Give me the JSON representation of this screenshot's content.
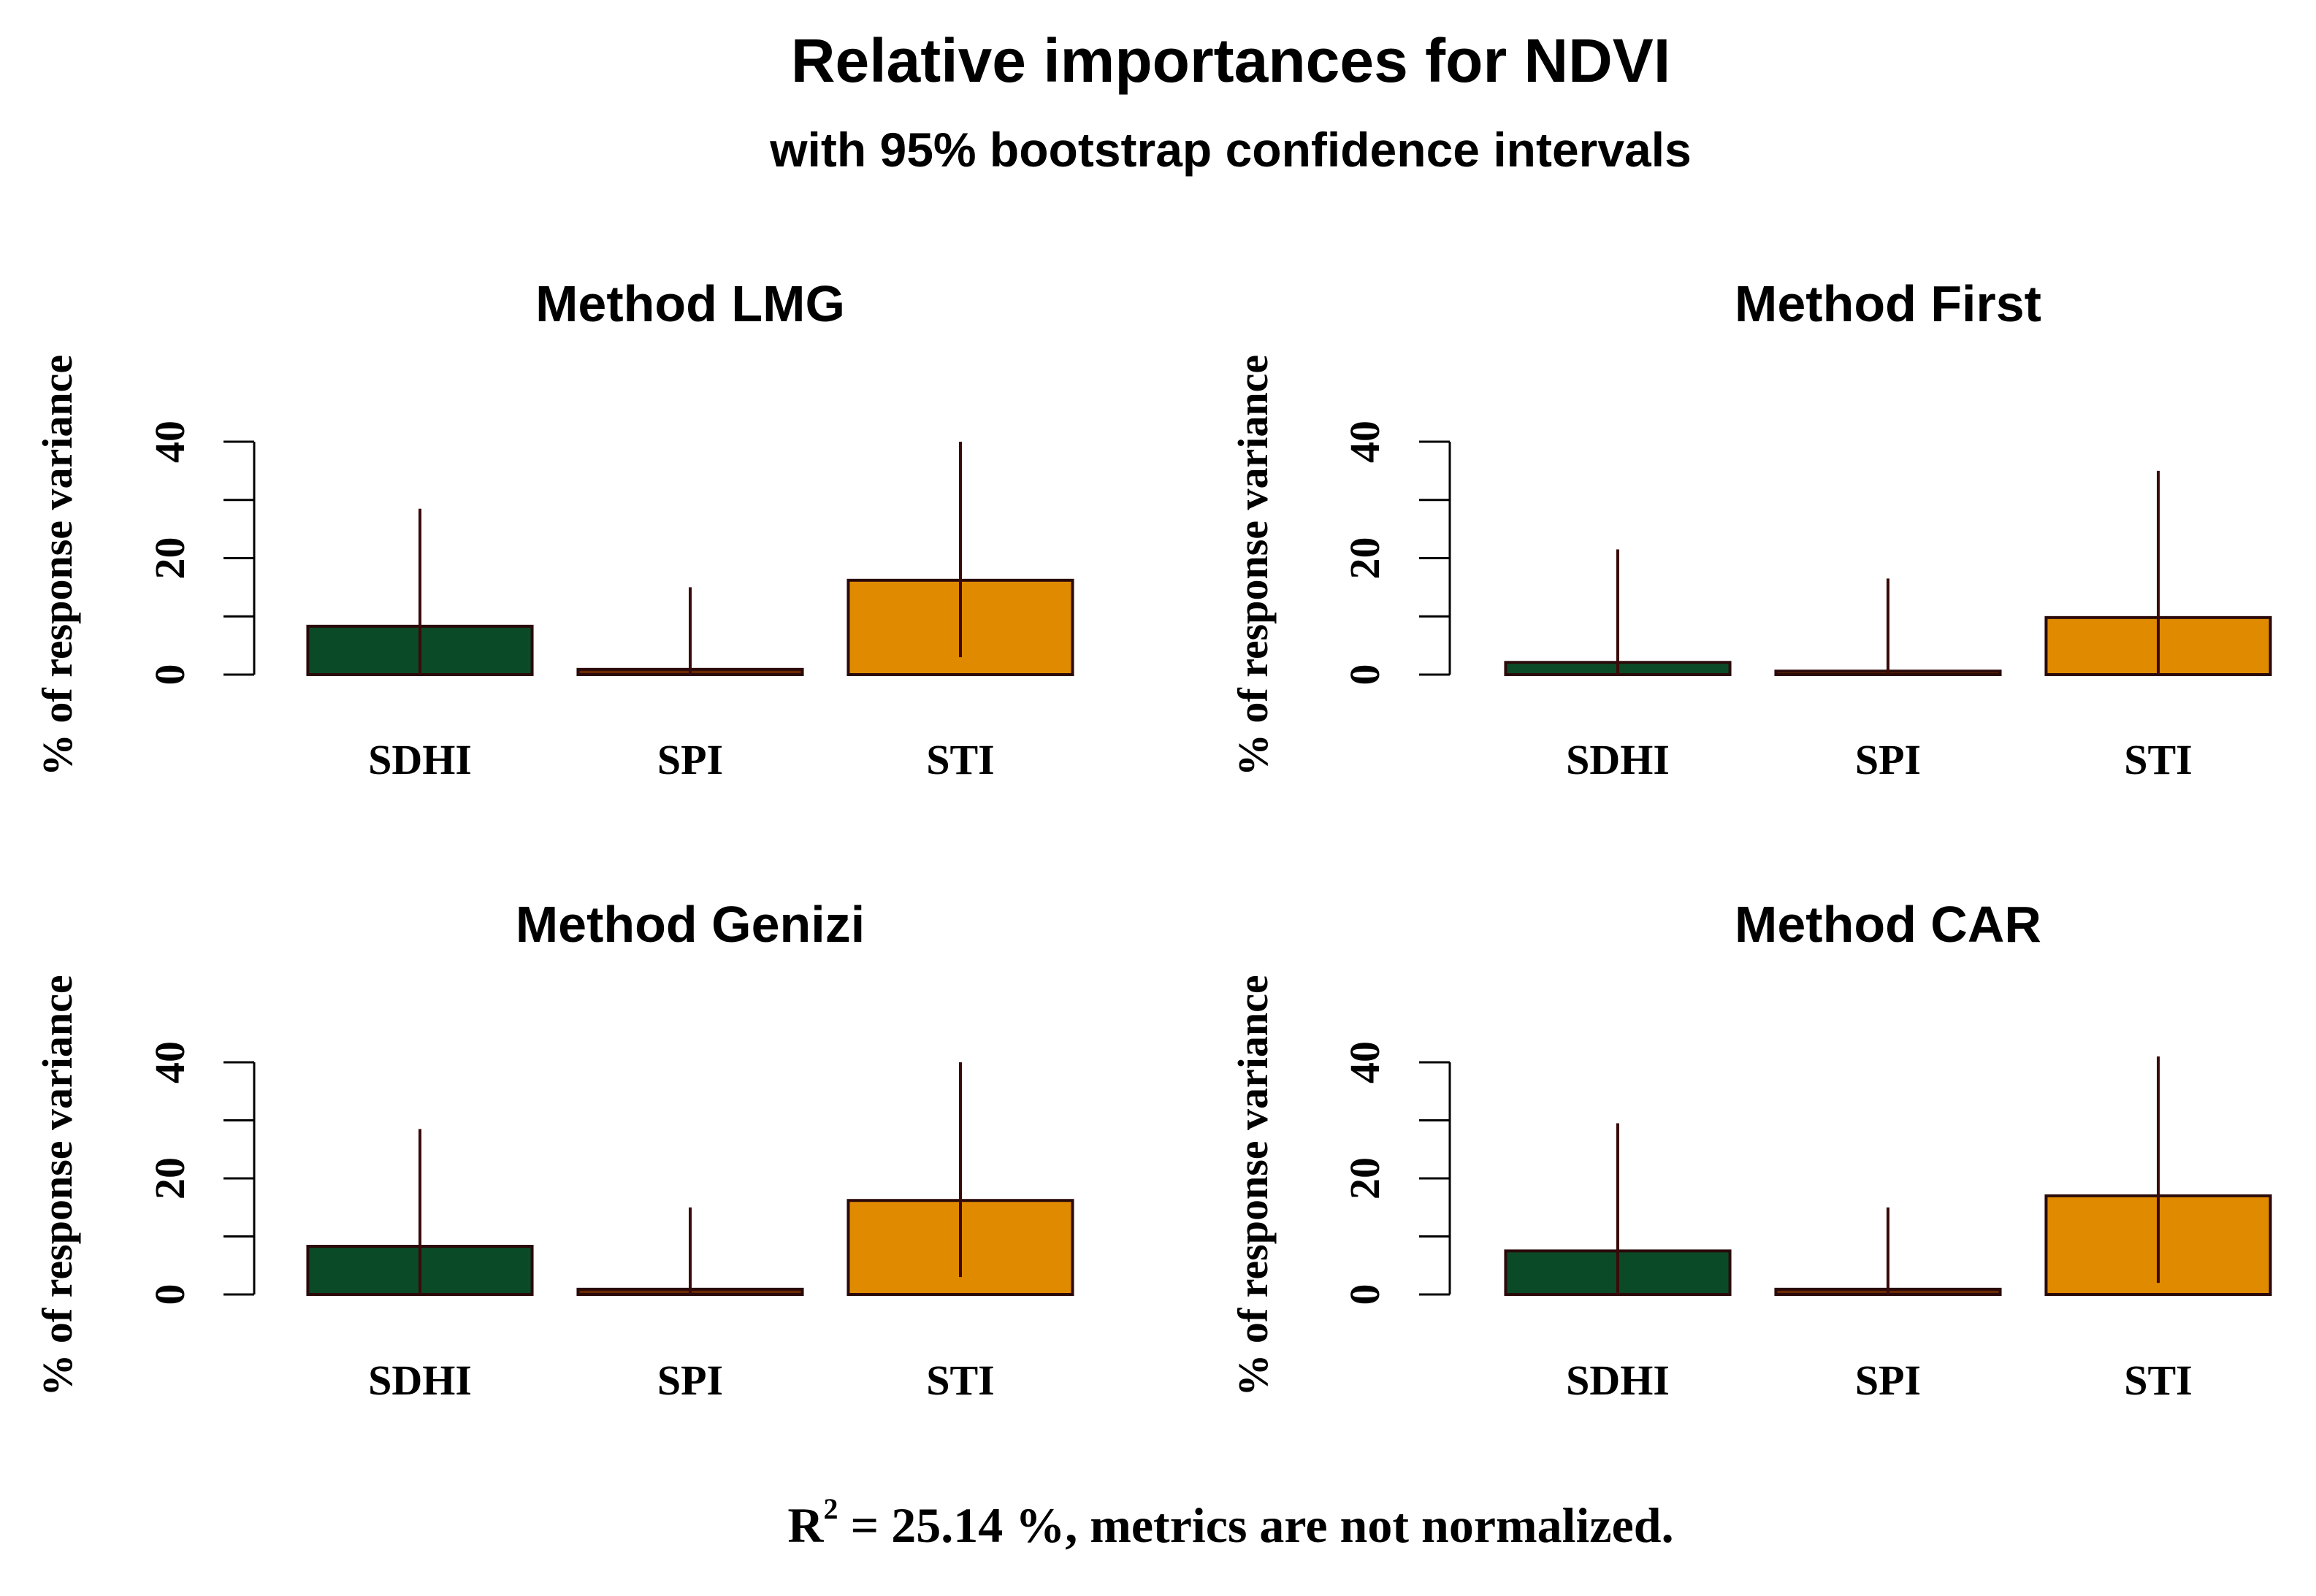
{
  "figure": {
    "title": "Relative importances for NDVI",
    "subtitle": "with 95% bootstrap confidence intervals",
    "footer": {
      "r_symbol": "R",
      "r_exponent": "2",
      "text": " = 25.14 %, metrics are not normalized."
    }
  },
  "chart_data": [
    {
      "type": "bar",
      "title": "Method LMG",
      "ylabel": "% of response variance",
      "xlabel": "",
      "ylim": [
        0,
        40
      ],
      "yticks": [
        0,
        20,
        40
      ],
      "categories": [
        "SDHI",
        "SPI",
        "STI"
      ],
      "values": [
        8.3,
        0.9,
        16.2
      ],
      "ci_lower": [
        0,
        0,
        3
      ],
      "ci_upper": [
        28.5,
        15,
        40
      ],
      "colors": [
        "#0b4a27",
        "#6b2a00",
        "#e08a00"
      ]
    },
    {
      "type": "bar",
      "title": "Method First",
      "ylabel": "% of response variance",
      "xlabel": "",
      "ylim": [
        0,
        40
      ],
      "yticks": [
        0,
        20,
        40
      ],
      "categories": [
        "SDHI",
        "SPI",
        "STI"
      ],
      "values": [
        2.1,
        0.6,
        9.8
      ],
      "ci_lower": [
        0,
        0,
        0
      ],
      "ci_upper": [
        21.5,
        16.5,
        35
      ],
      "colors": [
        "#0b4a27",
        "#6b2a00",
        "#e08a00"
      ]
    },
    {
      "type": "bar",
      "title": "Method Genizi",
      "ylabel": "% of response variance",
      "xlabel": "",
      "ylim": [
        0,
        40
      ],
      "yticks": [
        0,
        20,
        40
      ],
      "categories": [
        "SDHI",
        "SPI",
        "STI"
      ],
      "values": [
        8.3,
        0.9,
        16.2
      ],
      "ci_lower": [
        0,
        0,
        3
      ],
      "ci_upper": [
        28.5,
        15,
        40
      ],
      "colors": [
        "#0b4a27",
        "#6b2a00",
        "#e08a00"
      ]
    },
    {
      "type": "bar",
      "title": "Method CAR",
      "ylabel": "% of response variance",
      "xlabel": "",
      "ylim": [
        0,
        40
      ],
      "yticks": [
        0,
        20,
        40
      ],
      "categories": [
        "SDHI",
        "SPI",
        "STI"
      ],
      "values": [
        7.5,
        0.9,
        17
      ],
      "ci_lower": [
        0,
        0,
        2
      ],
      "ci_upper": [
        29.5,
        15,
        41
      ],
      "colors": [
        "#0b4a27",
        "#6b2a00",
        "#e08a00"
      ]
    }
  ]
}
